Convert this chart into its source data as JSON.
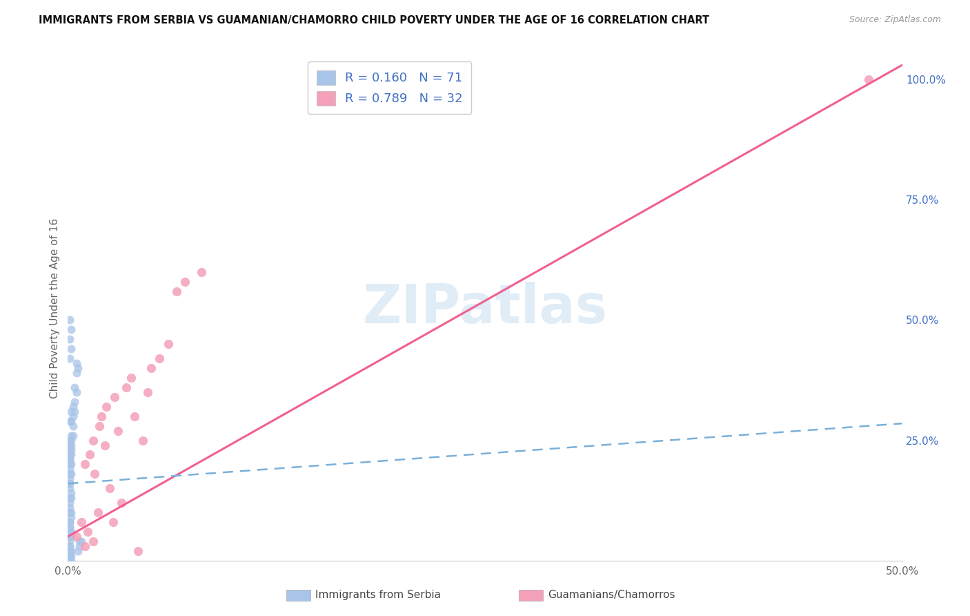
{
  "title": "IMMIGRANTS FROM SERBIA VS GUAMANIAN/CHAMORRO CHILD POVERTY UNDER THE AGE OF 16 CORRELATION CHART",
  "source": "Source: ZipAtlas.com",
  "ylabel": "Child Poverty Under the Age of 16",
  "x_min": 0.0,
  "x_max": 0.5,
  "y_min": 0.0,
  "y_max": 1.05,
  "serbia_color": "#a8c4e8",
  "guam_color": "#f4a0b8",
  "serbia_line_color": "#7ab0d8",
  "guam_line_color": "#f06090",
  "serbia_R": 0.16,
  "serbia_N": 71,
  "guam_R": 0.789,
  "guam_N": 32,
  "legend_label_serbia": "Immigrants from Serbia",
  "legend_label_guam": "Guamanians/Chamorros",
  "watermark": "ZIPatlas",
  "background_color": "#ffffff",
  "grid_color": "#d8d8d8",
  "serbia_x": [
    0.001,
    0.002,
    0.001,
    0.001,
    0.002,
    0.001,
    0.001,
    0.002,
    0.001,
    0.001,
    0.001,
    0.002,
    0.001,
    0.001,
    0.002,
    0.001,
    0.001,
    0.002,
    0.001,
    0.001,
    0.002,
    0.001,
    0.002,
    0.001,
    0.002,
    0.003,
    0.002,
    0.003,
    0.001,
    0.002,
    0.003,
    0.002,
    0.004,
    0.003,
    0.004,
    0.005,
    0.004,
    0.005,
    0.006,
    0.005,
    0.006,
    0.007,
    0.007,
    0.008,
    0.001,
    0.001,
    0.001,
    0.001,
    0.002,
    0.002,
    0.002,
    0.001,
    0.001,
    0.001,
    0.001,
    0.001,
    0.002,
    0.001,
    0.001,
    0.002,
    0.001,
    0.002,
    0.001,
    0.002,
    0.001,
    0.002,
    0.001,
    0.001,
    0.001,
    0.001,
    0.001
  ],
  "serbia_y": [
    0.05,
    0.05,
    0.08,
    0.1,
    0.1,
    0.12,
    0.13,
    0.13,
    0.15,
    0.16,
    0.17,
    0.18,
    0.19,
    0.2,
    0.2,
    0.21,
    0.21,
    0.22,
    0.22,
    0.23,
    0.23,
    0.24,
    0.24,
    0.25,
    0.25,
    0.26,
    0.26,
    0.28,
    0.29,
    0.29,
    0.3,
    0.31,
    0.31,
    0.32,
    0.33,
    0.35,
    0.36,
    0.39,
    0.4,
    0.41,
    0.02,
    0.03,
    0.04,
    0.04,
    0.0,
    0.0,
    0.01,
    0.01,
    0.0,
    0.01,
    0.02,
    0.02,
    0.03,
    0.03,
    0.04,
    0.05,
    0.06,
    0.07,
    0.08,
    0.09,
    0.42,
    0.44,
    0.46,
    0.48,
    0.5,
    0.14,
    0.11,
    0.07,
    0.06,
    0.16,
    0.18
  ],
  "guam_x": [
    0.005,
    0.008,
    0.01,
    0.01,
    0.012,
    0.013,
    0.015,
    0.015,
    0.016,
    0.018,
    0.019,
    0.02,
    0.022,
    0.023,
    0.025,
    0.027,
    0.028,
    0.03,
    0.032,
    0.035,
    0.038,
    0.04,
    0.042,
    0.045,
    0.048,
    0.05,
    0.055,
    0.06,
    0.065,
    0.07,
    0.08,
    0.48
  ],
  "guam_y": [
    0.05,
    0.08,
    0.03,
    0.2,
    0.06,
    0.22,
    0.04,
    0.25,
    0.18,
    0.1,
    0.28,
    0.3,
    0.24,
    0.32,
    0.15,
    0.08,
    0.34,
    0.27,
    0.12,
    0.36,
    0.38,
    0.3,
    0.02,
    0.25,
    0.35,
    0.4,
    0.42,
    0.45,
    0.56,
    0.58,
    0.6,
    1.0
  ],
  "serbia_line_x0": 0.0,
  "serbia_line_x1": 0.5,
  "serbia_line_y0": 0.16,
  "serbia_line_y1": 0.285,
  "guam_line_x0": 0.0,
  "guam_line_x1": 0.5,
  "guam_line_y0": 0.05,
  "guam_line_y1": 1.03
}
